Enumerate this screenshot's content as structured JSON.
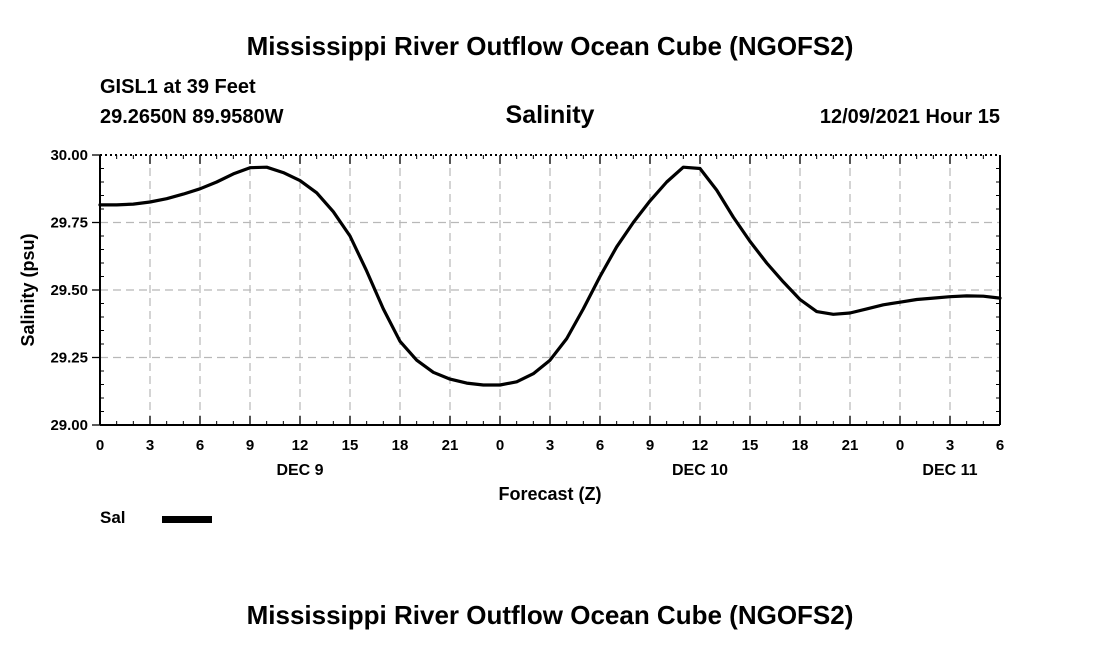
{
  "header": {
    "title": "Mississippi River Outflow Ocean Cube (NGOFS2)",
    "station": "GISL1 at 39 Feet",
    "coords": "29.2650N  89.9580W",
    "variable": "Salinity",
    "datetime": "12/09/2021 Hour 15"
  },
  "footer": {
    "title": "Mississippi River Outflow Ocean Cube (NGOFS2)"
  },
  "legend": {
    "label": "Sal"
  },
  "colors": {
    "line": "#000000",
    "grid": "#b8b8b8"
  },
  "chart_data": {
    "type": "line",
    "title": "Salinity",
    "xlabel": "Forecast (Z)",
    "ylabel": "Salinity (psu)",
    "xlim": [
      0,
      54
    ],
    "ylim": [
      29.0,
      30.0
    ],
    "grid": true,
    "x_tick_labels": [
      "0",
      "3",
      "6",
      "9",
      "12",
      "15",
      "18",
      "21",
      "0",
      "3",
      "6",
      "9",
      "12",
      "15",
      "18",
      "21",
      "0",
      "3",
      "6"
    ],
    "day_labels": [
      {
        "x": 12,
        "label": "DEC 9"
      },
      {
        "x": 36,
        "label": "DEC 10"
      },
      {
        "x": 51,
        "label": "DEC 11"
      }
    ],
    "y_ticks": [
      {
        "value": 29.0,
        "label": "29.00"
      },
      {
        "value": 29.25,
        "label": "29.25"
      },
      {
        "value": 29.5,
        "label": "29.50"
      },
      {
        "value": 29.75,
        "label": "29.75"
      },
      {
        "value": 30.0,
        "label": "30.00"
      }
    ],
    "series": [
      {
        "name": "Sal",
        "x": [
          0,
          1,
          2,
          3,
          4,
          5,
          6,
          7,
          8,
          9,
          10,
          11,
          12,
          13,
          14,
          15,
          16,
          17,
          18,
          19,
          20,
          21,
          22,
          23,
          24,
          25,
          26,
          27,
          28,
          29,
          30,
          31,
          32,
          33,
          34,
          35,
          36,
          37,
          38,
          39,
          40,
          41,
          42,
          43,
          44,
          45,
          46,
          47,
          48,
          49,
          50,
          51,
          52,
          53,
          54
        ],
        "values": [
          29.815,
          29.815,
          29.818,
          29.826,
          29.838,
          29.855,
          29.875,
          29.9,
          29.93,
          29.953,
          29.955,
          29.935,
          29.905,
          29.86,
          29.79,
          29.7,
          29.57,
          29.43,
          29.31,
          29.24,
          29.195,
          29.17,
          29.155,
          29.148,
          29.148,
          29.16,
          29.19,
          29.24,
          29.32,
          29.43,
          29.55,
          29.66,
          29.75,
          29.83,
          29.9,
          29.955,
          29.95,
          29.87,
          29.77,
          29.68,
          29.6,
          29.53,
          29.465,
          29.42,
          29.41,
          29.415,
          29.43,
          29.445,
          29.455,
          29.465,
          29.47,
          29.475,
          29.478,
          29.477,
          29.47
        ]
      }
    ]
  }
}
